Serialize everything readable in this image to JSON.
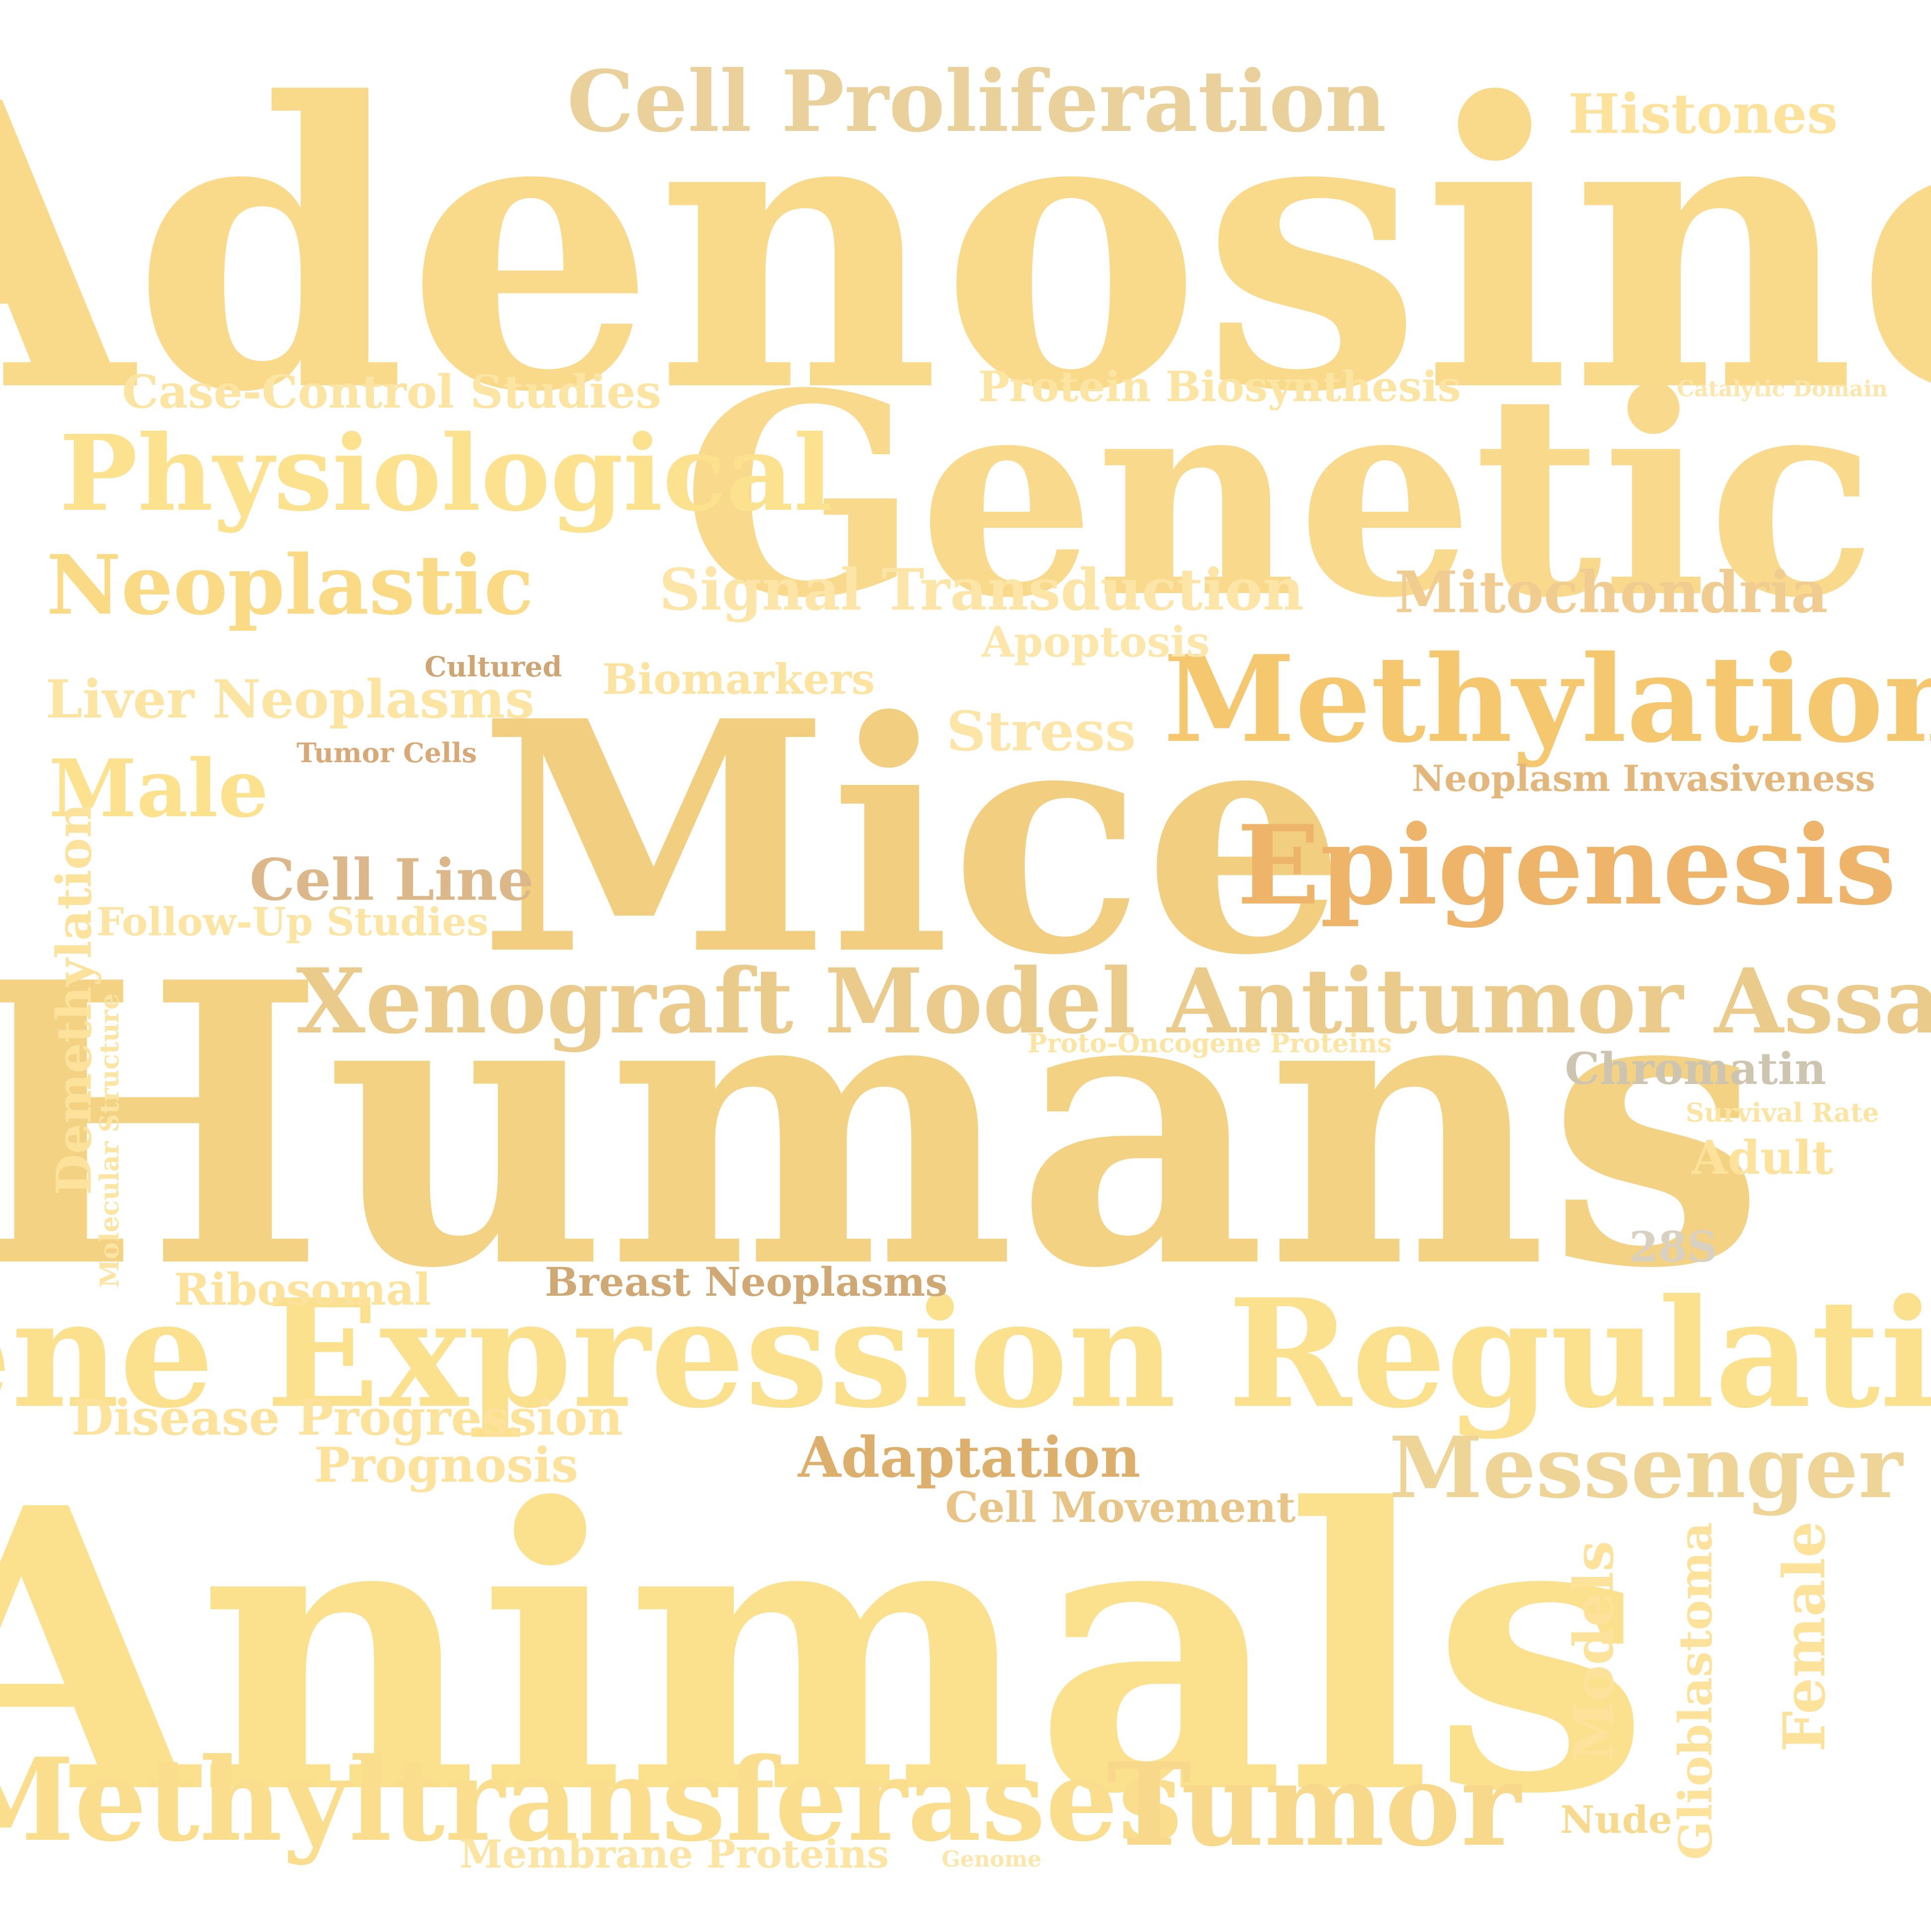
{
  "words": [
    {
      "text": "Adenosine",
      "color": "#F9D98A"
    },
    {
      "text": "Humans",
      "color": "#F3D283"
    },
    {
      "text": "Animals",
      "color": "#FBE18D"
    },
    {
      "text": "Mice",
      "color": "#F2CF80"
    },
    {
      "text": "Genetic",
      "color": "#F9DA8D"
    },
    {
      "text": "Gene Expression Regulation",
      "color": "#FBE08E"
    },
    {
      "text": "Xenograft Model Antitumor Assays",
      "color": "#EBCB8C"
    },
    {
      "text": "Methylation",
      "color": "#F5C76F"
    },
    {
      "text": "Epigenesis",
      "color": "#EDB46A"
    },
    {
      "text": "Methyltransferases",
      "color": "#FADD8D"
    },
    {
      "text": "Tumor",
      "color": "#F8D98B"
    },
    {
      "text": "Physiological",
      "color": "#FCE18E"
    },
    {
      "text": "Cell Proliferation",
      "color": "#EAD19C"
    },
    {
      "text": "Messenger",
      "color": "#EFD498"
    },
    {
      "text": "Neoplastic",
      "color": "#FADA84"
    },
    {
      "text": "Male",
      "color": "#FCE18E"
    },
    {
      "text": "Histones",
      "color": "#FCE29A"
    },
    {
      "text": "Signal Transduction",
      "color": "#FCE5A6"
    },
    {
      "text": "Mitochondria",
      "color": "#F0CC91"
    },
    {
      "text": "Case-Control Studies",
      "color": "#FCE4A2"
    },
    {
      "text": "Protein Biosynthesis",
      "color": "#FCE4A2"
    },
    {
      "text": "Liver Neoplasms",
      "color": "#FCE4A2"
    },
    {
      "text": "Biomarkers",
      "color": "#FCE3A0"
    },
    {
      "text": "Apoptosis",
      "color": "#FCE6A9"
    },
    {
      "text": "Stress",
      "color": "#FCE5A6"
    },
    {
      "text": "Cell Line",
      "color": "#DCB78A"
    },
    {
      "text": "Follow-Up Studies",
      "color": "#FCE4A2"
    },
    {
      "text": "Disease Progression",
      "color": "#FCE29A"
    },
    {
      "text": "Prognosis",
      "color": "#FCE29A"
    },
    {
      "text": "Adaptation",
      "color": "#DDAF6D"
    },
    {
      "text": "Cell Movement",
      "color": "#E8C587"
    },
    {
      "text": "Ribosomal",
      "color": "#FCE29A"
    },
    {
      "text": "Breast Neoplasms",
      "color": "#CFA874"
    },
    {
      "text": "Neoplasm Invasiveness",
      "color": "#E3B77B"
    },
    {
      "text": "Chromatin",
      "color": "#CEC5B0"
    },
    {
      "text": "Adult",
      "color": "#FCE29A"
    },
    {
      "text": "Survival Rate",
      "color": "#FCE4A2"
    },
    {
      "text": "28S",
      "color": "#D8D0C0"
    },
    {
      "text": "Membrane Proteins",
      "color": "#FCE4A2"
    },
    {
      "text": "Nude",
      "color": "#F8DA8F"
    },
    {
      "text": "Genome",
      "color": "#FCE6A9"
    },
    {
      "text": "Catalytic Domain",
      "color": "#FCE6A9"
    },
    {
      "text": "Cultured",
      "color": "#CFA574"
    },
    {
      "text": "Tumor Cells",
      "color": "#D9A877"
    },
    {
      "text": "Proto-Oncogene Proteins",
      "color": "#FCE4A2"
    },
    {
      "text": "Demethylation",
      "color": "#FCE29A"
    },
    {
      "text": "Molecular Structure",
      "color": "#FCE4A2"
    },
    {
      "text": "Models",
      "color": "#FCE29A"
    },
    {
      "text": "Glioblastoma",
      "color": "#FCE29A"
    },
    {
      "text": "Female",
      "color": "#FCE29A"
    }
  ]
}
